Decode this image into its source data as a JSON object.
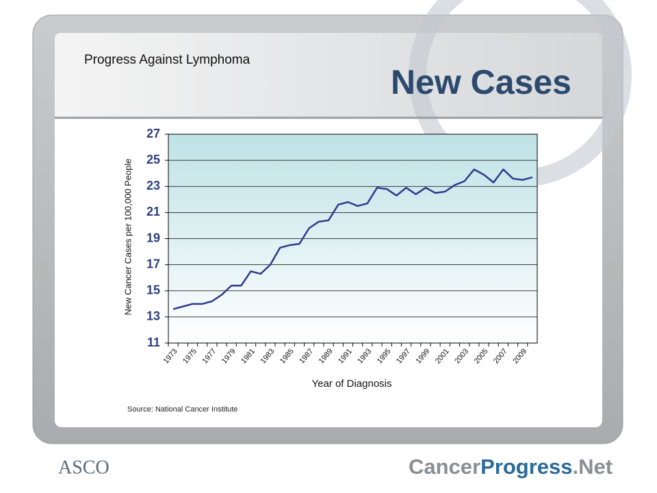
{
  "slide": {
    "subtitle": "Progress Against Lymphoma",
    "heading": "New Cases",
    "source": "Source: National Cancer Institute",
    "logo_left": "ASCO",
    "logo_right_a": "Cancer",
    "logo_right_b": "Progress",
    "logo_right_c": ".Net"
  },
  "chart_data": {
    "type": "line",
    "x_label": "Year of Diagnosis",
    "y_label": "New Cancer Cases per 100,000 People",
    "categories": [
      "1973",
      null,
      "1975",
      null,
      "1977",
      null,
      "1979",
      null,
      "1981",
      null,
      "1983",
      null,
      "1985",
      null,
      "1987",
      null,
      "1989",
      null,
      "1991",
      null,
      "1993",
      null,
      "1995",
      null,
      "1997",
      null,
      "1999",
      null,
      "2001",
      null,
      "2003",
      null,
      "2005",
      null,
      "2007",
      null,
      "2009",
      null
    ],
    "series": [
      {
        "name": "New Cases",
        "color": "#2e3a8c",
        "values": [
          13.6,
          13.8,
          14.0,
          14.0,
          14.2,
          14.7,
          15.4,
          15.4,
          16.5,
          16.3,
          17.0,
          18.3,
          18.5,
          18.6,
          19.8,
          20.3,
          20.4,
          21.6,
          21.8,
          21.5,
          21.7,
          22.9,
          22.8,
          22.3,
          22.9,
          22.4,
          22.9,
          22.5,
          22.6,
          23.1,
          23.4,
          24.3,
          23.9,
          23.3,
          24.3,
          23.6,
          23.5,
          23.7
        ]
      }
    ],
    "ylim": [
      11,
      27
    ],
    "yticks": [
      11,
      13,
      15,
      17,
      19,
      21,
      23,
      25,
      27
    ],
    "grid": true
  }
}
